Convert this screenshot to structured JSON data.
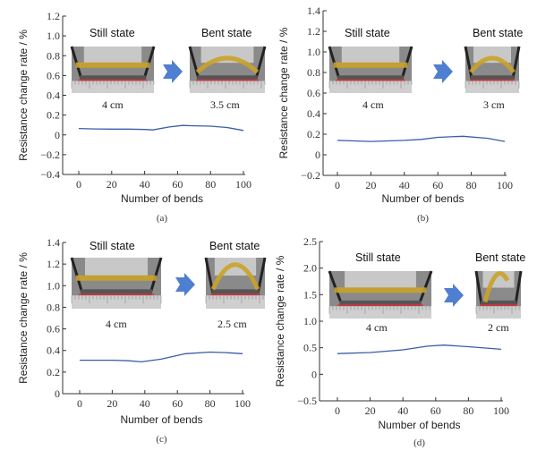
{
  "chart_data": [
    {
      "type": "line",
      "panel": "(a)",
      "xlabel": "Number of bends",
      "ylabel": "Resistance change rate / %",
      "xlim": [
        0,
        100
      ],
      "ylim": [
        -0.4,
        1.2
      ],
      "xticks": [
        "0",
        "20",
        "40",
        "60",
        "80",
        "100"
      ],
      "yticks": [
        "1.2",
        "1.0",
        "0.8",
        "0.6",
        "0.4",
        "0.2",
        "0",
        "−0.2",
        "−0.4"
      ],
      "ytick_values": [
        1.2,
        1.0,
        0.8,
        0.6,
        0.4,
        0.2,
        0,
        -0.2,
        -0.4
      ],
      "x": [
        0,
        10,
        20,
        30,
        40,
        45,
        55,
        63,
        70,
        80,
        90,
        100
      ],
      "y": [
        0.065,
        0.06,
        0.058,
        0.058,
        0.055,
        0.05,
        0.08,
        0.095,
        0.092,
        0.088,
        0.075,
        0.045
      ],
      "annotations": {
        "still": "Still state",
        "bent": "Bent state",
        "still_len": "4 cm",
        "bent_len": "3.5 cm"
      },
      "grid": false,
      "line_color": "#3b5ca8"
    },
    {
      "type": "line",
      "panel": "(b)",
      "xlabel": "Number of bends",
      "ylabel": "Resistance change rate / %",
      "xlim": [
        0,
        100
      ],
      "ylim": [
        -0.2,
        1.4
      ],
      "xticks": [
        "0",
        "20",
        "40",
        "60",
        "80",
        "100"
      ],
      "yticks": [
        "1.4",
        "1.2",
        "1.0",
        "0.8",
        "0.6",
        "0.4",
        "0.2",
        "0",
        "−0.2"
      ],
      "ytick_values": [
        1.4,
        1.2,
        1.0,
        0.8,
        0.6,
        0.4,
        0.2,
        0,
        -0.2
      ],
      "x": [
        0,
        20,
        40,
        50,
        60,
        75,
        90,
        100
      ],
      "y": [
        0.14,
        0.13,
        0.14,
        0.15,
        0.17,
        0.18,
        0.16,
        0.13
      ],
      "annotations": {
        "still": "Still state",
        "bent": "Bent state",
        "still_len": "4 cm",
        "bent_len": "3 cm"
      },
      "grid": false,
      "line_color": "#3b5ca8"
    },
    {
      "type": "line",
      "panel": "(c)",
      "xlabel": "Number of bends",
      "ylabel": "Resistance change rate / %",
      "xlim": [
        0,
        100
      ],
      "ylim": [
        0,
        1.4
      ],
      "xticks": [
        "0",
        "20",
        "40",
        "60",
        "80",
        "100"
      ],
      "yticks": [
        "1.4",
        "1.2",
        "1.0",
        "0.8",
        "0.6",
        "0.4",
        "0.2",
        "0"
      ],
      "ytick_values": [
        1.4,
        1.2,
        1.0,
        0.8,
        0.6,
        0.4,
        0.2,
        0
      ],
      "x": [
        0,
        20,
        30,
        38,
        50,
        65,
        80,
        90,
        100
      ],
      "y": [
        0.31,
        0.31,
        0.305,
        0.295,
        0.32,
        0.37,
        0.385,
        0.38,
        0.37
      ],
      "annotations": {
        "still": "Still state",
        "bent": "Bent state",
        "still_len": "4 cm",
        "bent_len": "2.5 cm"
      },
      "grid": false,
      "line_color": "#3b5ca8"
    },
    {
      "type": "line",
      "panel": "(d)",
      "xlabel": "Number of bends",
      "ylabel": "Resistance change rate / %",
      "xlim": [
        0,
        100
      ],
      "ylim": [
        -0.5,
        2.5
      ],
      "xticks": [
        "0",
        "20",
        "40",
        "60",
        "80",
        "100"
      ],
      "yticks": [
        "2.5",
        "2.0",
        "1.5",
        "1.0",
        "0.5",
        "0",
        "−0.5"
      ],
      "ytick_values": [
        2.5,
        2.0,
        1.5,
        1.0,
        0.5,
        0,
        -0.5
      ],
      "x": [
        0,
        20,
        40,
        55,
        65,
        80,
        100
      ],
      "y": [
        0.39,
        0.41,
        0.46,
        0.53,
        0.55,
        0.52,
        0.47
      ],
      "annotations": {
        "still": "Still state",
        "bent": "Bent state",
        "still_len": "4 cm",
        "bent_len": "2 cm"
      },
      "grid": false,
      "line_color": "#3b5ca8"
    }
  ]
}
